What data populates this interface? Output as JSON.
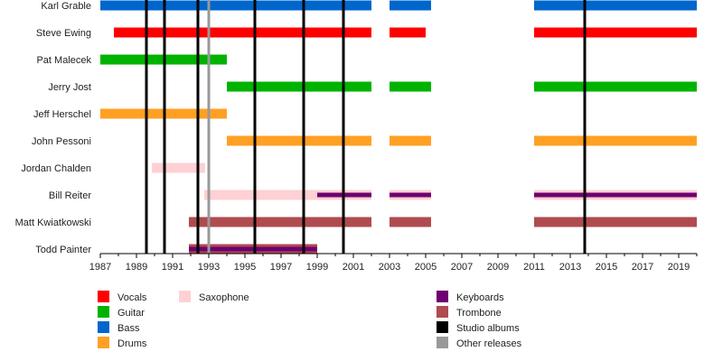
{
  "chart_data": {
    "type": "timeline",
    "xlim": [
      1987,
      2020
    ],
    "x_ticks": [
      1987,
      1989,
      1991,
      1993,
      1995,
      1997,
      1999,
      2001,
      2003,
      2005,
      2007,
      2009,
      2011,
      2013,
      2015,
      2017,
      2019
    ],
    "colors": {
      "Vocals": "#ff0000",
      "Guitar": "#00b300",
      "Bass": "#0066cc",
      "Drums": "#ffa024",
      "Saxophone": "#ffd0d4",
      "Keyboards": "#6e0070",
      "Trombone": "#b04b4f",
      "Studio albums": "#000000",
      "Other releases": "#999999"
    },
    "members": [
      {
        "name": "Karl Grable",
        "bars": [
          {
            "role": "Bass",
            "start": 1987,
            "end": 2002
          },
          {
            "role": "Bass",
            "start": 2003,
            "end": 2005.3
          },
          {
            "role": "Bass",
            "start": 2011,
            "end": 2020
          }
        ]
      },
      {
        "name": "Steve Ewing",
        "bars": [
          {
            "role": "Vocals",
            "start": 1987.75,
            "end": 2002
          },
          {
            "role": "Vocals",
            "start": 2003,
            "end": 2005
          },
          {
            "role": "Vocals",
            "start": 2011,
            "end": 2020
          }
        ]
      },
      {
        "name": "Pat Malecek",
        "bars": [
          {
            "role": "Guitar",
            "start": 1987,
            "end": 1994
          }
        ]
      },
      {
        "name": "Jerry Jost",
        "bars": [
          {
            "role": "Guitar",
            "start": 1994,
            "end": 2002
          },
          {
            "role": "Guitar",
            "start": 2003,
            "end": 2005.3
          },
          {
            "role": "Guitar",
            "start": 2011,
            "end": 2020
          }
        ]
      },
      {
        "name": "Jeff Herschel",
        "bars": [
          {
            "role": "Drums",
            "start": 1987,
            "end": 1994
          }
        ]
      },
      {
        "name": "John Pessoni",
        "bars": [
          {
            "role": "Drums",
            "start": 1994,
            "end": 2002
          },
          {
            "role": "Drums",
            "start": 2003,
            "end": 2005.3
          },
          {
            "role": "Drums",
            "start": 2011,
            "end": 2020
          }
        ]
      },
      {
        "name": "Jordan Chalden",
        "bars": [
          {
            "role": "Saxophone",
            "start": 1989.85,
            "end": 1992.8
          }
        ]
      },
      {
        "name": "Bill Reiter",
        "bars": [
          {
            "role": "Saxophone",
            "start": 1992.75,
            "end": 2002
          },
          {
            "role": "Saxophone",
            "start": 2003,
            "end": 2005.3
          },
          {
            "role": "Saxophone",
            "start": 2011,
            "end": 2020
          },
          {
            "role": "Keyboards",
            "start": 1999,
            "end": 2002,
            "thin": true
          },
          {
            "role": "Keyboards",
            "start": 2003,
            "end": 2005.3,
            "thin": true
          },
          {
            "role": "Keyboards",
            "start": 2011,
            "end": 2020,
            "thin": true
          }
        ]
      },
      {
        "name": "Matt Kwiatkowski",
        "bars": [
          {
            "role": "Trombone",
            "start": 1991.9,
            "end": 2002
          },
          {
            "role": "Trombone",
            "start": 2003,
            "end": 2005.3
          },
          {
            "role": "Trombone",
            "start": 2011,
            "end": 2020
          }
        ]
      },
      {
        "name": "Todd Painter",
        "bars": [
          {
            "role": "Trombone",
            "start": 1991.9,
            "end": 1999
          },
          {
            "role": "Keyboards",
            "start": 1991.9,
            "end": 1999,
            "thin": true
          }
        ]
      }
    ],
    "events": [
      {
        "type": "Studio albums",
        "year": 1989.55
      },
      {
        "type": "Studio albums",
        "year": 1990.55
      },
      {
        "type": "Studio albums",
        "year": 1992.4
      },
      {
        "type": "Other releases",
        "year": 1993.0
      },
      {
        "type": "Studio albums",
        "year": 1995.55
      },
      {
        "type": "Studio albums",
        "year": 1998.25
      },
      {
        "type": "Studio albums",
        "year": 2000.45
      },
      {
        "type": "Studio albums",
        "year": 2013.8
      }
    ],
    "legend": {
      "placement": "bottom",
      "columns": [
        [
          "Vocals",
          "Guitar",
          "Bass",
          "Drums"
        ],
        [
          "Saxophone"
        ],
        [
          "Keyboards",
          "Trombone",
          "Studio albums",
          "Other releases"
        ]
      ]
    }
  }
}
